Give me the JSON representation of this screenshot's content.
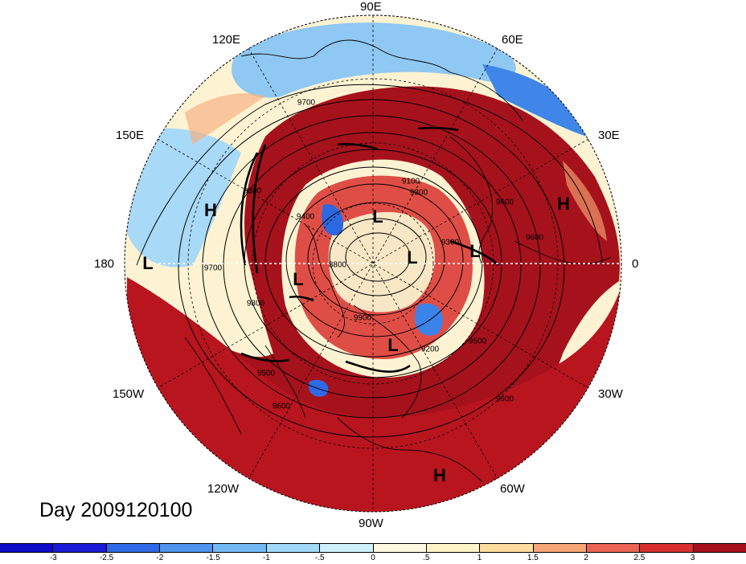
{
  "title": "Day 2009120100",
  "longitude_labels": {
    "top": "90E",
    "top_left": "120E",
    "top_right": "60E",
    "upper_left": "150E",
    "upper_right": "30E",
    "left": "180",
    "right": "0",
    "lower_left": "150W",
    "lower_right": "30W",
    "bottom_left": "120W",
    "bottom_right": "60W",
    "bottom": "90W"
  },
  "pressure_markers": [
    {
      "id": "h-west",
      "label": "H"
    },
    {
      "id": "h-east",
      "label": "H"
    },
    {
      "id": "h-south",
      "label": "H"
    },
    {
      "id": "l-dateline",
      "label": "L"
    },
    {
      "id": "l-north",
      "label": "L"
    },
    {
      "id": "l-pole",
      "label": "L"
    },
    {
      "id": "l-europe",
      "label": "L"
    },
    {
      "id": "l-canada",
      "label": "L"
    },
    {
      "id": "l-atlantic",
      "label": "L"
    }
  ],
  "contour_labels": [
    "9100",
    "9700",
    "9600",
    "9800",
    "9400",
    "8800",
    "9500",
    "9600",
    "9200",
    "9500",
    "9600",
    "9600",
    "9700",
    "9800",
    "9900",
    "9300",
    "9300"
  ],
  "colorbar": {
    "ticks": [
      "-3",
      "-2.5",
      "-2",
      "-1.5",
      "-1",
      "-.5",
      "0",
      ".5",
      "1",
      "1.5",
      "2",
      "2.5",
      "3"
    ],
    "colors": [
      "#1b1bd6",
      "#2f6ae6",
      "#4d95ee",
      "#72b8f3",
      "#9fd9f7",
      "#cdf0fb",
      "#ffffff",
      "#fff4c8",
      "#fddc9e",
      "#f6a574",
      "#ea6451",
      "#d8302e",
      "#a5111b"
    ]
  }
}
